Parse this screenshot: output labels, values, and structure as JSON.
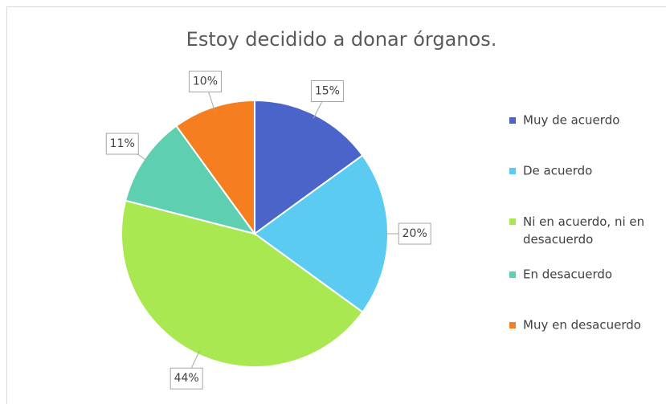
{
  "chart_data": {
    "type": "pie",
    "title": "Estoy decidido a donar órganos.",
    "categories": [
      "Muy de acuerdo",
      "De acuerdo",
      "Ni en acuerdo, ni en desacuerdo",
      "En desacuerdo",
      "Muy en desacuerdo"
    ],
    "values": [
      15,
      20,
      44,
      11,
      10
    ],
    "value_labels": [
      "15%",
      "20%",
      "44%",
      "11%",
      "10%"
    ],
    "colors": [
      "#4a64c9",
      "#5ccbf2",
      "#a9e851",
      "#5ecfb1",
      "#f57e21"
    ],
    "legend": "right"
  }
}
